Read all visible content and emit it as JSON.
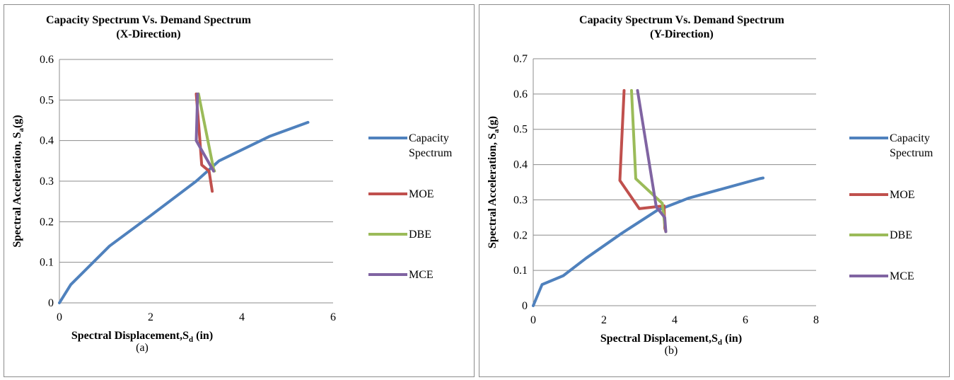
{
  "colors": {
    "capacity": "#4f81bd",
    "moe": "#c0504d",
    "dbe": "#9bbb59",
    "mce": "#8064a2",
    "grid": "#8c8c8c"
  },
  "chart_data": [
    {
      "type": "line",
      "title": "Capacity Spectrum Vs. Demand Spectrum",
      "subtitle": "(X-Direction)",
      "xlabel_main": "Spectral  Displacement,S",
      "xlabel_sub": "d",
      "xlabel_tail": " (in)",
      "ylabel_main": "Spectral Acceleration, S",
      "ylabel_sub": "a",
      "ylabel_tail": "(g)",
      "caption": "(a)",
      "xlim": [
        0,
        6
      ],
      "ylim": [
        0,
        0.6
      ],
      "xticks": [
        "0",
        "2",
        "4",
        "6"
      ],
      "yticks": [
        "0",
        "0.1",
        "0.2",
        "0.3",
        "0.4",
        "0.5",
        "0.6"
      ],
      "grid": "horizontal",
      "legend_position": "right",
      "series": [
        {
          "name": "Capacity Spectrum",
          "name_line1": "Capacity",
          "name_line2": "Spectrum",
          "color_key": "capacity",
          "x": [
            0,
            0.25,
            1.1,
            2.0,
            3.0,
            3.5,
            4.6,
            5.45
          ],
          "y": [
            0,
            0.045,
            0.14,
            0.215,
            0.3,
            0.35,
            0.41,
            0.445
          ]
        },
        {
          "name": "MOE",
          "color_key": "moe",
          "x": [
            3.0,
            3.08,
            3.12,
            3.28,
            3.35
          ],
          "y": [
            0.515,
            0.4,
            0.34,
            0.325,
            0.275
          ]
        },
        {
          "name": "DBE",
          "color_key": "dbe",
          "x": [
            3.05,
            3.38,
            3.4
          ],
          "y": [
            0.515,
            0.33,
            0.325
          ]
        },
        {
          "name": "MCE",
          "color_key": "mce",
          "x": [
            3.03,
            3.0,
            3.38
          ],
          "y": [
            0.515,
            0.4,
            0.325
          ]
        }
      ]
    },
    {
      "type": "line",
      "title": "Capacity Spectrum Vs. Demand Spectrum",
      "subtitle": "(Y-Direction)",
      "xlabel_main": "Spectral  Displacement,S",
      "xlabel_sub": "d",
      "xlabel_tail": " (in)",
      "ylabel_main": "Spectral Acceleration, S",
      "ylabel_sub": "a",
      "ylabel_tail": "(g)",
      "caption": "(b)",
      "xlim": [
        0,
        8
      ],
      "ylim": [
        0,
        0.7
      ],
      "xticks": [
        "0",
        "2",
        "4",
        "6",
        "8"
      ],
      "yticks": [
        "0",
        "0.1",
        "0.2",
        "0.3",
        "0.4",
        "0.5",
        "0.6",
        "0.7"
      ],
      "grid": "horizontal",
      "legend_position": "right",
      "series": [
        {
          "name": "Capacity Spectrum",
          "name_line1": "Capacity",
          "name_line2": "Spectrum",
          "color_key": "capacity",
          "x": [
            0,
            0.25,
            0.85,
            1.5,
            2.5,
            3.5,
            4.4,
            6.4,
            6.5
          ],
          "y": [
            0,
            0.06,
            0.085,
            0.135,
            0.205,
            0.27,
            0.305,
            0.36,
            0.362
          ]
        },
        {
          "name": "MOE",
          "color_key": "moe",
          "x": [
            2.57,
            2.45,
            3.0,
            3.7,
            3.72,
            3.75
          ],
          "y": [
            0.61,
            0.355,
            0.275,
            0.283,
            0.22,
            0.21
          ]
        },
        {
          "name": "DBE",
          "color_key": "dbe",
          "x": [
            2.78,
            2.9,
            3.65,
            3.72,
            3.75
          ],
          "y": [
            0.61,
            0.36,
            0.29,
            0.23,
            0.21
          ]
        },
        {
          "name": "MCE",
          "color_key": "mce",
          "x": [
            2.95,
            3.48,
            3.72,
            3.75
          ],
          "y": [
            0.61,
            0.28,
            0.25,
            0.21
          ]
        }
      ]
    }
  ]
}
